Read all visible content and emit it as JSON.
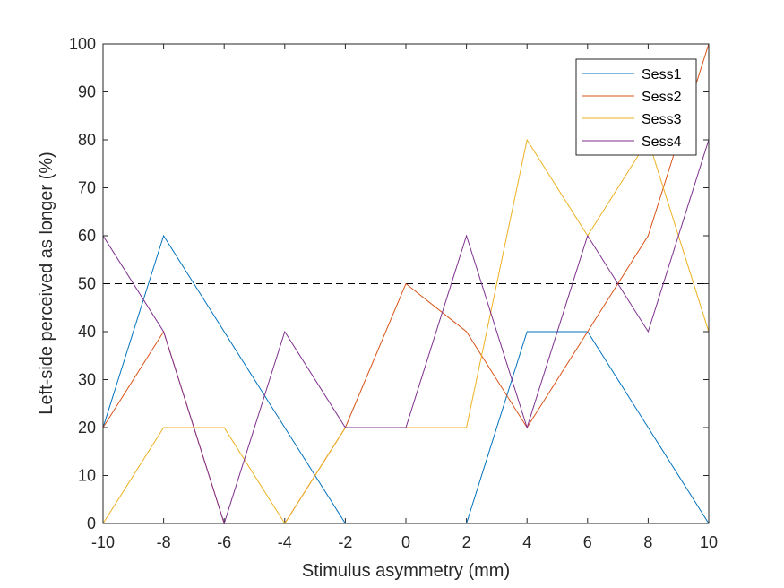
{
  "chart_data": {
    "type": "line",
    "title": "",
    "xlabel": "Stimulus asymmetry (mm)",
    "ylabel": "Left-side perceived as longer (%)",
    "xlim": [
      -10,
      10
    ],
    "ylim": [
      0,
      100
    ],
    "x_ticks": [
      -10,
      -8,
      -6,
      -4,
      -2,
      0,
      2,
      4,
      6,
      8,
      10
    ],
    "y_ticks": [
      0,
      10,
      20,
      30,
      40,
      50,
      60,
      70,
      80,
      90,
      100
    ],
    "grid": false,
    "legend_position": "top-right",
    "reference_line": {
      "y": 50,
      "style": "dashed",
      "color": "#000000"
    },
    "x": [
      -10,
      -8,
      -6,
      -4,
      -2,
      0,
      2,
      4,
      6,
      8,
      10
    ],
    "series": [
      {
        "name": "Sess1",
        "color": "#0072BD",
        "values": [
          20,
          60,
          40,
          20,
          0,
          0,
          0,
          40,
          40,
          20,
          0
        ]
      },
      {
        "name": "Sess2",
        "color": "#D95319",
        "values": [
          20,
          40,
          0,
          0,
          20,
          50,
          40,
          20,
          40,
          60,
          100
        ]
      },
      {
        "name": "Sess3",
        "color": "#EDB120",
        "values": [
          0,
          20,
          20,
          0,
          20,
          20,
          20,
          80,
          60,
          80,
          40
        ]
      },
      {
        "name": "Sess4",
        "color": "#7E2F8E",
        "values": [
          60,
          40,
          0,
          40,
          20,
          20,
          60,
          20,
          60,
          40,
          80
        ]
      }
    ]
  }
}
